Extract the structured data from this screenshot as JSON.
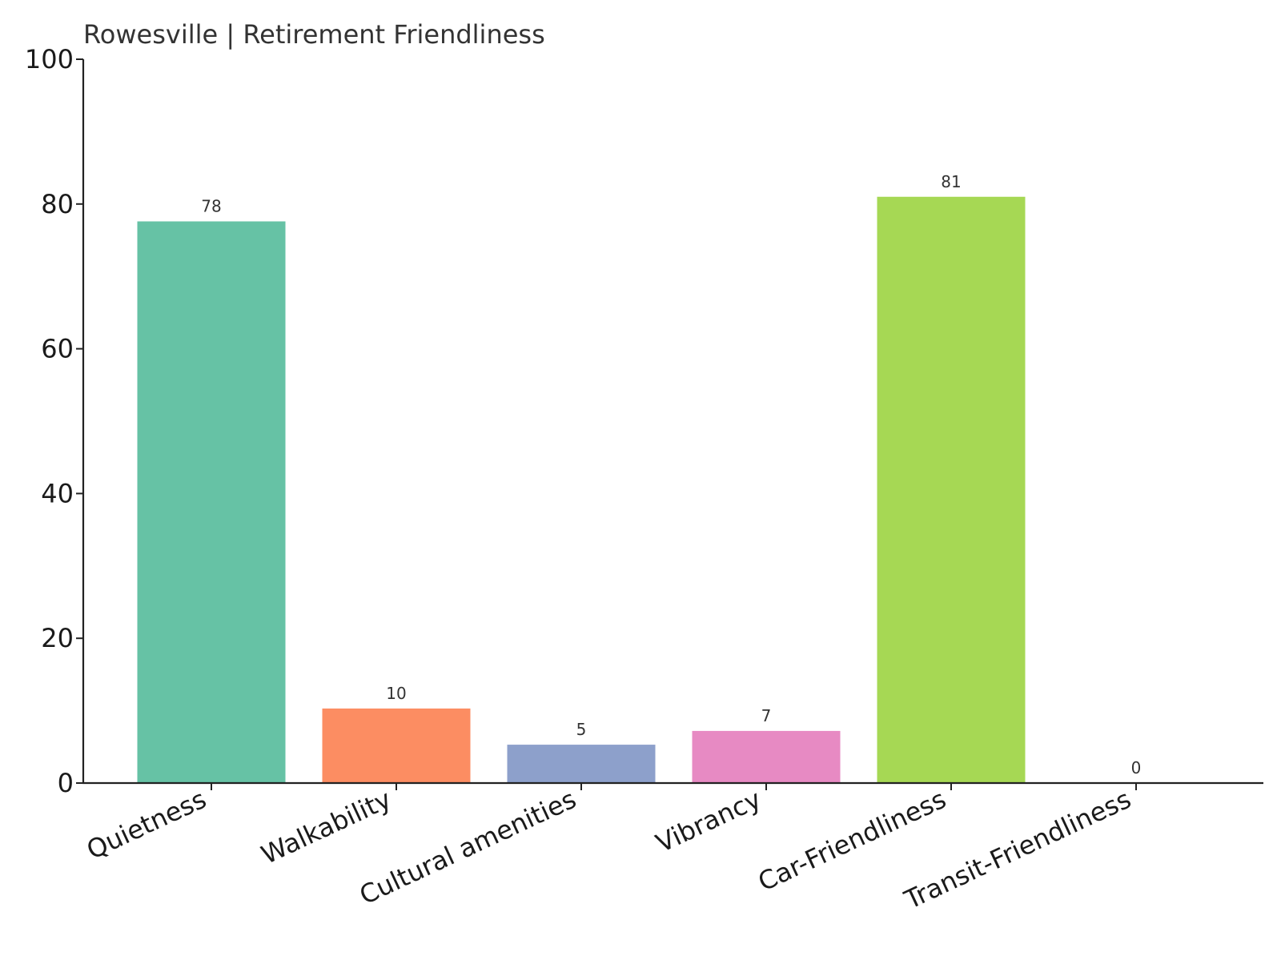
{
  "chart_data": {
    "type": "bar",
    "title": "Rowesville | Retirement Friendliness",
    "xlabel": "",
    "ylabel": "",
    "categories": [
      "Quietness",
      "Walkability",
      "Cultural amenities",
      "Vibrancy",
      "Car-Friendliness",
      "Transit-Friendliness"
    ],
    "values": [
      77.6,
      10.3,
      5.3,
      7.2,
      81,
      0
    ],
    "data_labels": [
      "78",
      "10",
      "5",
      "7",
      "81",
      "0"
    ],
    "colors": [
      "#66c2a5",
      "#fc8d62",
      "#8da0cb",
      "#e78ac3",
      "#a6d854",
      "#ffd92f"
    ],
    "ylim": [
      0,
      100
    ],
    "yticks": [
      "0",
      "20",
      "40",
      "60",
      "80",
      "100"
    ],
    "grid": false,
    "legend": "none"
  }
}
